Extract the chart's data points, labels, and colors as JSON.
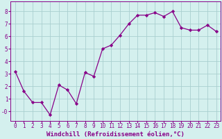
{
  "x": [
    0,
    1,
    2,
    3,
    4,
    5,
    6,
    7,
    8,
    9,
    10,
    11,
    12,
    13,
    14,
    15,
    16,
    17,
    18,
    19,
    20,
    21,
    22,
    23
  ],
  "y": [
    3.2,
    1.6,
    0.7,
    0.7,
    -0.3,
    2.1,
    1.7,
    0.6,
    3.1,
    2.8,
    5.0,
    5.3,
    6.1,
    7.0,
    7.7,
    7.7,
    7.9,
    7.6,
    8.0,
    6.7,
    6.5,
    6.5,
    6.9,
    6.4
  ],
  "line_color": "#880088",
  "marker": "D",
  "marker_size": 2.2,
  "background_color": "#d4f0ee",
  "grid_color": "#aacfcf",
  "xlabel": "Windchill (Refroidissement éolien,°C)",
  "ylabel": "",
  "ylim": [
    -0.8,
    8.8
  ],
  "xlim": [
    -0.5,
    23.5
  ],
  "yticks": [
    0,
    1,
    2,
    3,
    4,
    5,
    6,
    7,
    8
  ],
  "ytick_labels": [
    "-0",
    "1",
    "2",
    "3",
    "4",
    "5",
    "6",
    "7",
    "8"
  ],
  "xticks": [
    0,
    1,
    2,
    3,
    4,
    5,
    6,
    7,
    8,
    9,
    10,
    11,
    12,
    13,
    14,
    15,
    16,
    17,
    18,
    19,
    20,
    21,
    22,
    23
  ],
  "tick_label_fontsize": 5.5,
  "xlabel_fontsize": 6.5,
  "spine_color": "#880088",
  "linewidth": 0.9
}
